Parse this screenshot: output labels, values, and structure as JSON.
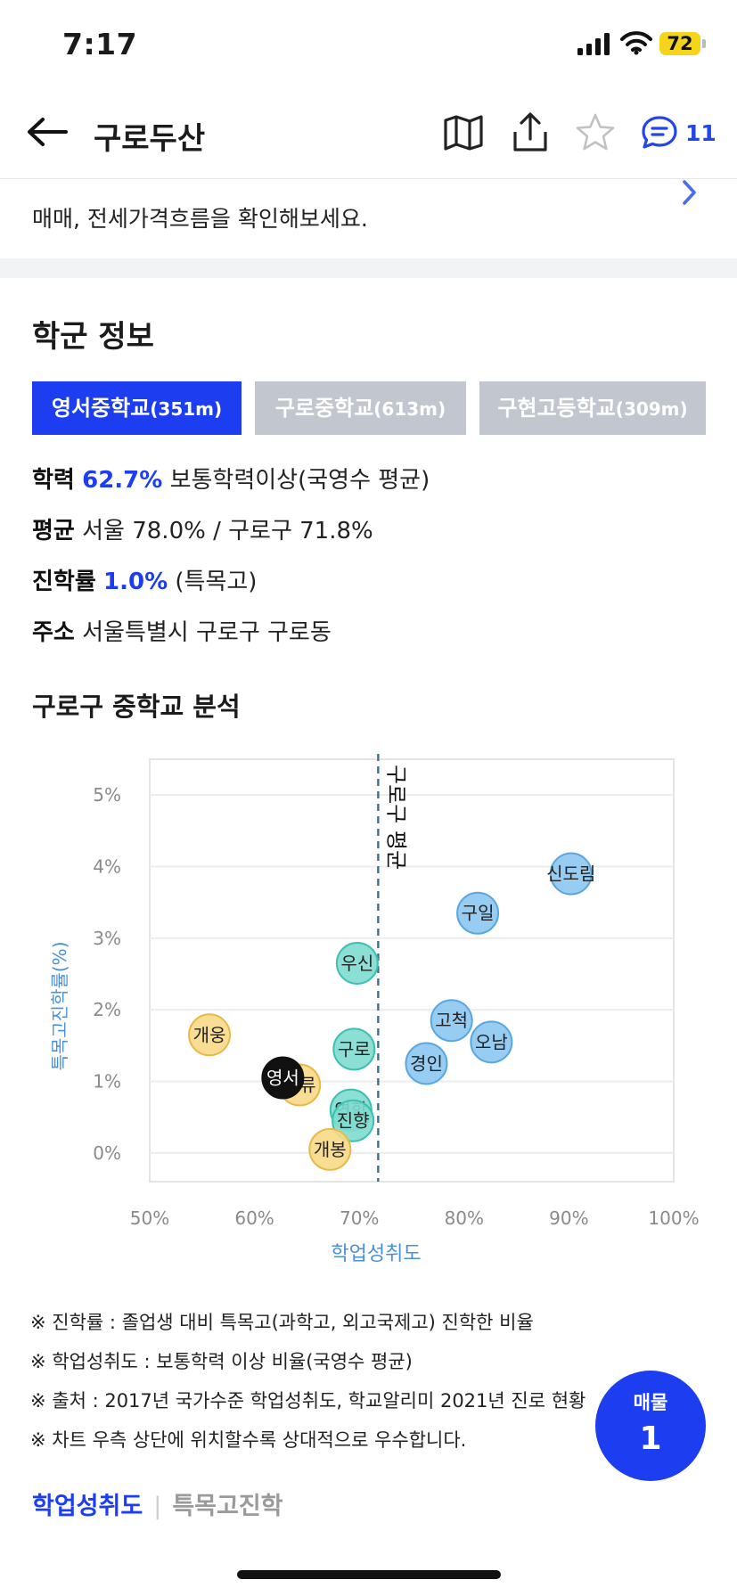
{
  "status_bar": {
    "time": "7:17",
    "battery": "72"
  },
  "header": {
    "title": "구로두산",
    "comment_count": "11"
  },
  "price_section": {
    "description": "매매, 전세가격흐름을 확인해보세요."
  },
  "school_section": {
    "title": "학군 정보",
    "tabs": [
      {
        "label": "영서중학교",
        "distance": "(351m)",
        "active": true
      },
      {
        "label": "구로중학교",
        "distance": "(613m)",
        "active": false
      },
      {
        "label": "구현고등학교",
        "distance": "(309m)",
        "active": false
      }
    ],
    "info": {
      "achievement_label": "학력",
      "achievement_value": "62.7%",
      "achievement_desc": "보통학력이상(국영수 평균)",
      "average_label": "평균",
      "average_value": "서울 78.0% / 구로구 71.8%",
      "advancement_label": "진학률",
      "advancement_value": "1.0%",
      "advancement_desc": "(특목고)",
      "address_label": "주소",
      "address_value": "서울특별시 구로구 구로동"
    }
  },
  "chart_data": {
    "type": "scatter",
    "title": "구로구 중학교 분석",
    "xlabel": "학업성취도",
    "ylabel": "특목고진학률(%)",
    "xlim": [
      50,
      100
    ],
    "ylim": [
      -0.4,
      5.5
    ],
    "x_ticks": [
      "50%",
      "60%",
      "70%",
      "80%",
      "90%",
      "100%"
    ],
    "y_ticks": [
      "0%",
      "1%",
      "2%",
      "3%",
      "4%",
      "5%"
    ],
    "x_tick_values": [
      50,
      60,
      70,
      80,
      90,
      100
    ],
    "y_tick_values": [
      0,
      1,
      2,
      3,
      4,
      5
    ],
    "reference_line": {
      "x": 71.8,
      "label": "구로구 평균"
    },
    "colors": {
      "yellow": "#f7d986",
      "teal": "#7fdcd0",
      "blue": "#8cc8f2",
      "highlight": "#111111"
    },
    "points": [
      {
        "label": "신도림",
        "x": 90.2,
        "y": 3.9,
        "color": "blue"
      },
      {
        "label": "구일",
        "x": 81.3,
        "y": 3.35,
        "color": "blue"
      },
      {
        "label": "고척",
        "x": 78.8,
        "y": 1.85,
        "color": "blue"
      },
      {
        "label": "오남",
        "x": 82.6,
        "y": 1.55,
        "color": "blue"
      },
      {
        "label": "경인",
        "x": 76.4,
        "y": 1.25,
        "color": "blue"
      },
      {
        "label": "우신",
        "x": 69.8,
        "y": 2.65,
        "color": "teal"
      },
      {
        "label": "구로",
        "x": 69.5,
        "y": 1.45,
        "color": "teal"
      },
      {
        "label": "연합",
        "x": 69.2,
        "y": 0.6,
        "color": "teal"
      },
      {
        "label": "진향",
        "x": 69.4,
        "y": 0.45,
        "color": "teal"
      },
      {
        "label": "개웅",
        "x": 55.7,
        "y": 1.65,
        "color": "yellow"
      },
      {
        "label": "오류",
        "x": 64.3,
        "y": 0.95,
        "color": "yellow"
      },
      {
        "label": "개봉",
        "x": 67.2,
        "y": 0.05,
        "color": "yellow"
      },
      {
        "label": "영서",
        "x": 62.7,
        "y": 1.05,
        "color": "highlight"
      }
    ]
  },
  "notes": [
    "※ 진학률 : 졸업생 대비 특목고(과학고, 외고국제고) 진학한 비율",
    "※ 학업성취도 : 보통학력 이상 비율(국영수 평균)",
    "※ 출처 : 2017년 국가수준 학업성취도, 학교알리미 2021년 진로 현황",
    "※ 차트 우측 상단에 위치할수록 상대적으로 우수합니다."
  ],
  "bottom_tabs": {
    "active": "학업성취도",
    "inactive": "특목고진학"
  },
  "fab": {
    "label": "매물",
    "count": "1"
  },
  "icons": [
    "back-arrow-icon",
    "map-icon",
    "share-icon",
    "star-icon",
    "comment-icon",
    "chevron-right-icon",
    "signal-icon",
    "wifi-icon",
    "battery-icon"
  ]
}
